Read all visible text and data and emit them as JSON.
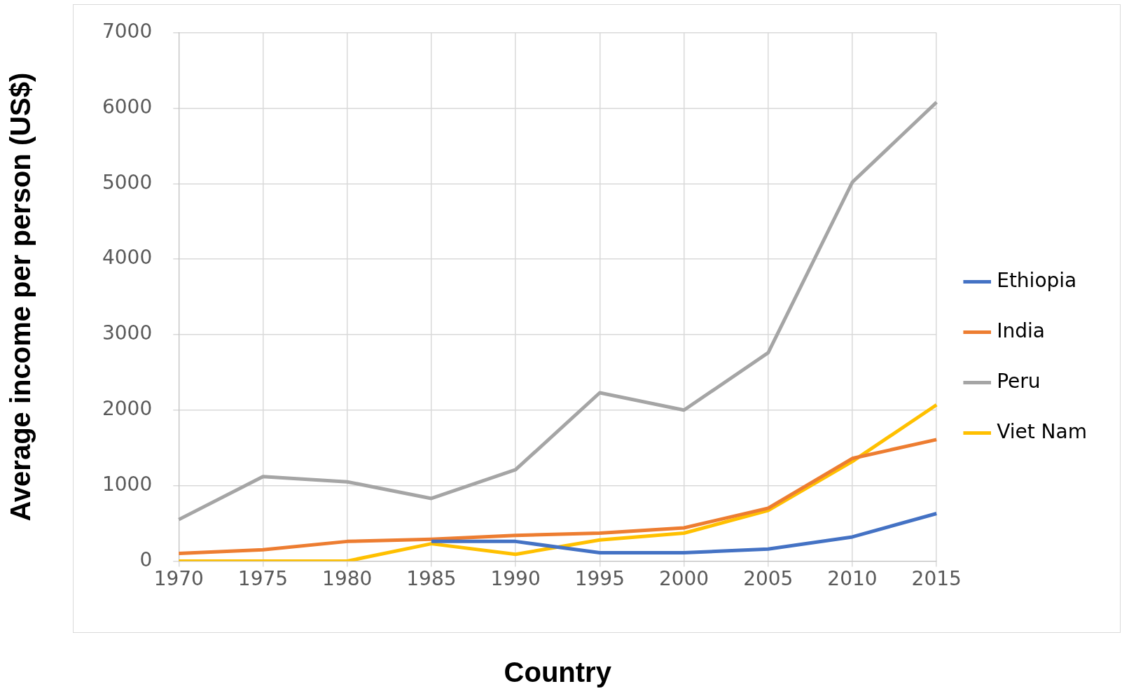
{
  "chart_data": {
    "type": "line",
    "xlabel": "Country",
    "ylabel": "Average income per person (US$)",
    "categories": [
      "1970",
      "1975",
      "1980",
      "1985",
      "1990",
      "1995",
      "2000",
      "2005",
      "2010",
      "2015"
    ],
    "series": [
      {
        "name": "Ethiopia",
        "color": "#4472c4",
        "values": [
          null,
          null,
          null,
          260,
          260,
          110,
          110,
          160,
          320,
          630
        ]
      },
      {
        "name": "India",
        "color": "#ed7d31",
        "values": [
          100,
          150,
          260,
          290,
          340,
          370,
          440,
          700,
          1360,
          1610
        ]
      },
      {
        "name": "Peru",
        "color": "#a5a5a5",
        "values": [
          550,
          1120,
          1050,
          830,
          1210,
          2230,
          2000,
          2760,
          5020,
          6080
        ]
      },
      {
        "name": "Viet Nam",
        "color": "#ffc000",
        "values": [
          0,
          0,
          0,
          230,
          90,
          280,
          370,
          670,
          1320,
          2070
        ]
      }
    ],
    "ylim": [
      0,
      7000
    ],
    "yticks": [
      0,
      1000,
      2000,
      3000,
      4000,
      5000,
      6000,
      7000
    ],
    "grid": true,
    "legend": "right",
    "marker": "none",
    "line_style": "solid"
  }
}
